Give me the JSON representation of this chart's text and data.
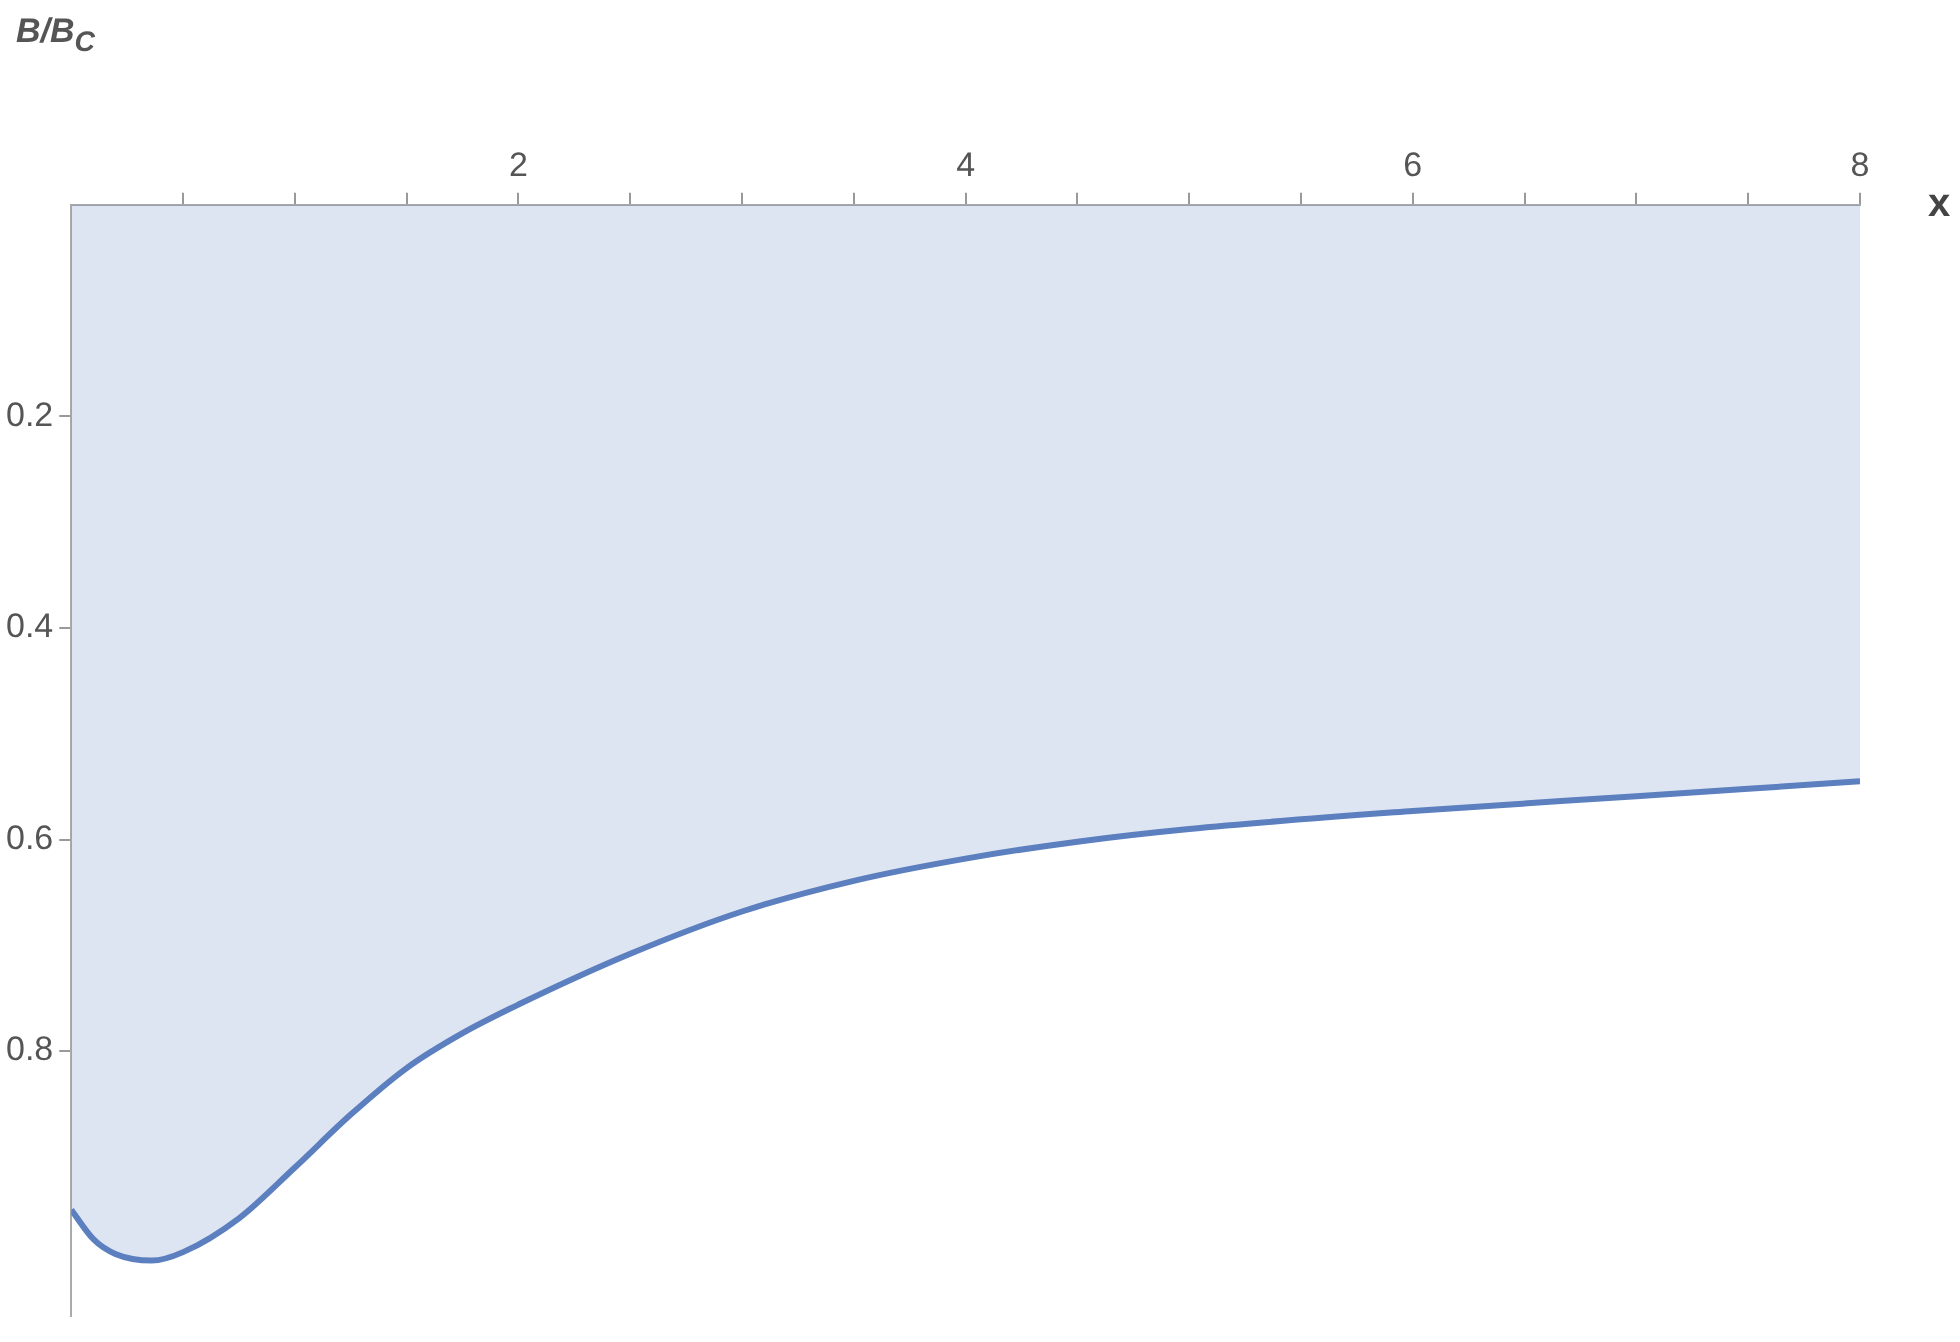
{
  "chart_data": {
    "type": "area",
    "xlabel": "x",
    "ylabel": "B/B$_{C}$",
    "x": [
      0,
      0.1,
      0.2,
      0.36,
      0.5,
      0.75,
      1,
      1.25,
      1.5,
      1.75,
      2,
      2.5,
      3,
      3.5,
      4,
      4.5,
      5,
      6,
      7,
      8
    ],
    "series": [
      {
        "color": "#5b7fbf",
        "values": [
          0.95,
          0.978,
          0.992,
          0.998,
          0.99,
          0.958,
          0.91,
          0.86,
          0.816,
          0.783,
          0.756,
          0.708,
          0.668,
          0.639,
          0.618,
          0.602,
          0.59,
          0.573,
          0.559,
          0.545
        ]
      }
    ],
    "xlim": [
      0,
      8
    ],
    "xticks": [
      {
        "value": 0.5,
        "label": null
      },
      {
        "value": 1,
        "label": null
      },
      {
        "value": 1.5,
        "label": null
      },
      2,
      {
        "value": 2.5,
        "label": null
      },
      {
        "value": 3,
        "label": null
      },
      {
        "value": 3.5,
        "label": null
      },
      4,
      {
        "value": 4.5,
        "label": null
      },
      {
        "value": 5,
        "label": null
      },
      {
        "value": 5.5,
        "label": null
      },
      6,
      {
        "value": 6.5,
        "label": null
      },
      {
        "value": 7,
        "label": null
      },
      {
        "value": 7.5,
        "label": null
      },
      8
    ],
    "ylim": [
      1.05,
      0
    ],
    "yticks": [
      0.2,
      0.4,
      0.6,
      0.8
    ],
    "grid": false,
    "legend": false
  }
}
